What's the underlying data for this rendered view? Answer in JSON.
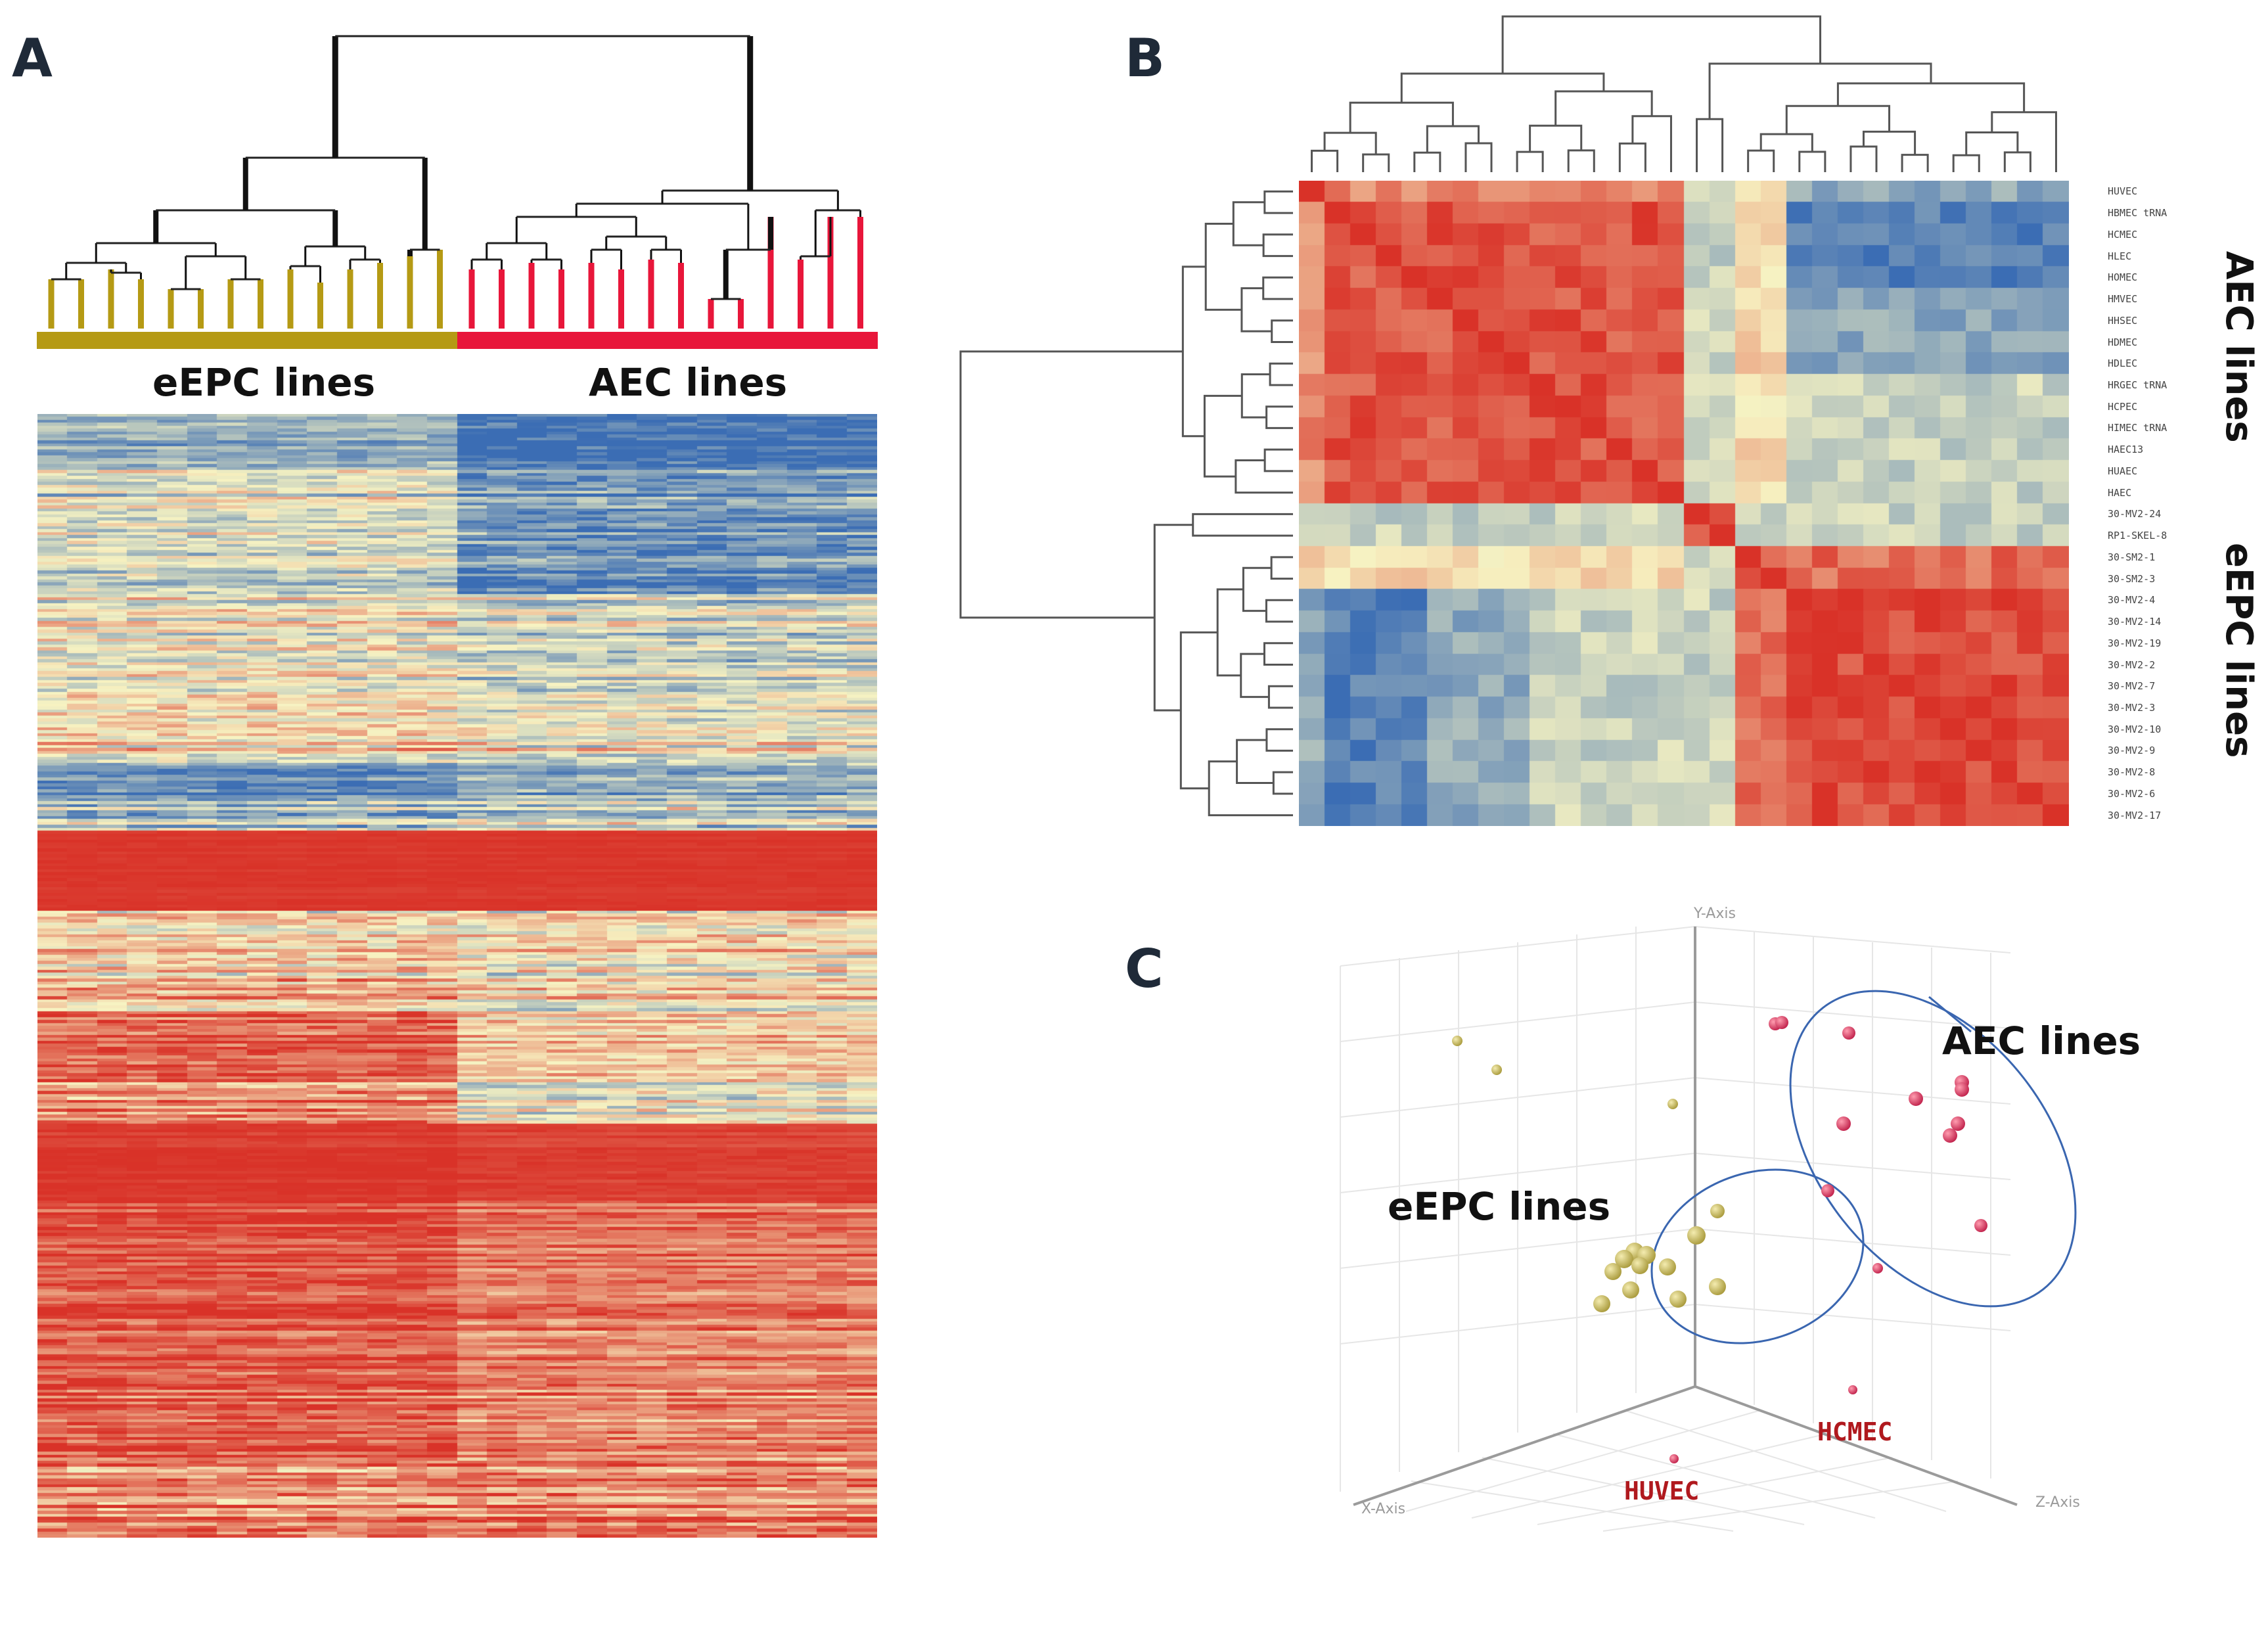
{
  "panels": {
    "a": {
      "letter": "A"
    },
    "b": {
      "letter": "B"
    },
    "c": {
      "letter": "C"
    }
  },
  "colors": {
    "eepc": "#b59a14",
    "aec": "#e8163a",
    "heat_low": "#3b6db4",
    "heat_mid": "#f7f3c2",
    "heat_high": "#d93228",
    "pca_eepc": "#ccc05a",
    "pca_aec": "#e03a5c",
    "circle": "#3a66b0"
  },
  "chart_data": [
    {
      "type": "heatmap",
      "id": "A",
      "title": "",
      "column_groups": [
        {
          "name": "eEPC lines",
          "count": 14
        },
        {
          "name": "AEC lines",
          "count": 14
        }
      ],
      "dendrogram": "hierarchical clustering of 28 lines; top split separates eEPC lines from AEC lines",
      "value_scale": [
        "low (blue)",
        "mid (pale yellow)",
        "high (red)"
      ]
    },
    {
      "type": "heatmap",
      "id": "B",
      "title": "",
      "row_labels": [
        "HUVEC",
        "HBMEC tRNA",
        "HCMEC",
        "HLEC",
        "HOMEC",
        "HMVEC",
        "HHSEC",
        "HDMEC",
        "HDLEC",
        "HRGEC tRNA",
        "HCPEC",
        "HIMEC tRNA",
        "HAEC13",
        "HUAEC",
        "HAEC",
        "30-MV2-24",
        "RP1-SKEL-8",
        "30-SM2-1",
        "30-SM2-3",
        "30-MV2-4",
        "30-MV2-14",
        "30-MV2-19",
        "30-MV2-2",
        "30-MV2-7",
        "30-MV2-3",
        "30-MV2-10",
        "30-MV2-9",
        "30-MV2-8",
        "30-MV2-6",
        "30-MV2-17"
      ],
      "row_groups": [
        {
          "name": "AEC lines",
          "rows": "HUVEC–HAEC"
        },
        {
          "name": "eEPC lines",
          "rows": "30-SM2-1–30-MV2-17"
        }
      ],
      "value_scale": [
        "low correlation (blue)",
        "high correlation (red)"
      ]
    },
    {
      "type": "scatter",
      "id": "C",
      "title": "",
      "axes": {
        "x": "X-Axis",
        "y": "Y-Axis",
        "z": "Z-Axis"
      },
      "groups": [
        {
          "name": "eEPC lines",
          "n_points": 15
        },
        {
          "name": "AEC lines",
          "n_points": 15
        }
      ],
      "point_labels": [
        "HUVEC",
        "HCMEC"
      ]
    }
  ],
  "labels": {
    "a_left": "eEPC lines",
    "a_right": "AEC lines",
    "b_aec": "AEC lines",
    "b_eepc": "eEPC lines",
    "c_aec": "AEC lines",
    "c_eepc": "eEPC lines",
    "c_huvec": "HUVEC",
    "c_hcmec": "HCMEC",
    "c_x": "X-Axis",
    "c_y": "Y-Axis",
    "c_z": "Z-Axis"
  }
}
